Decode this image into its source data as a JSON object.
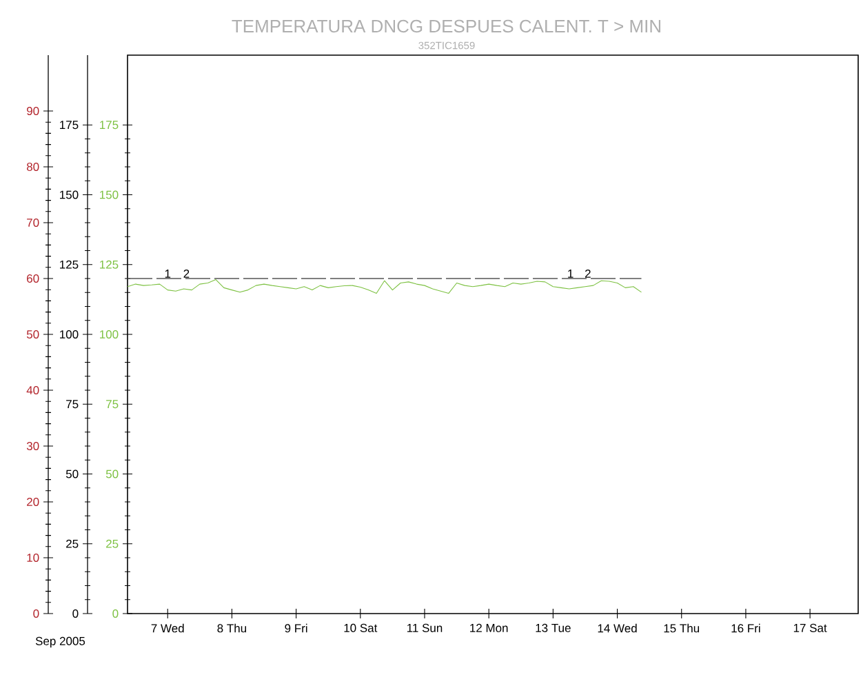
{
  "chart_data": {
    "type": "line",
    "title": "TEMPERATURA DNCG DESPUES CALENT.  T > MIN",
    "subtitle": "352TIC1659",
    "xlabel": "Sep 2005",
    "xlim": [
      "2005-09-06T09:00",
      "2005-09-17T18:00"
    ],
    "xticks": [
      {
        "value": "2005-09-07",
        "label": "7 Wed"
      },
      {
        "value": "2005-09-08",
        "label": "8 Thu"
      },
      {
        "value": "2005-09-09",
        "label": "9 Fri"
      },
      {
        "value": "2005-09-10",
        "label": "10 Sat"
      },
      {
        "value": "2005-09-11",
        "label": "11 Sun"
      },
      {
        "value": "2005-09-12",
        "label": "12 Mon"
      },
      {
        "value": "2005-09-13",
        "label": "13 Tue"
      },
      {
        "value": "2005-09-14",
        "label": "14 Wed"
      },
      {
        "value": "2005-09-15",
        "label": "15 Thu"
      },
      {
        "value": "2005-09-16",
        "label": "16 Fri"
      },
      {
        "value": "2005-09-17",
        "label": "17 Sat"
      }
    ],
    "ylim": [
      0,
      200
    ],
    "yticks": [
      0,
      25,
      50,
      75,
      100,
      125,
      150,
      175
    ],
    "y2lim": [
      0,
      200
    ],
    "y2ticks": [
      0,
      25,
      50,
      75,
      100,
      125,
      150,
      175
    ],
    "y3lim": [
      0,
      100
    ],
    "y3ticks": [
      0,
      10,
      20,
      30,
      40,
      50,
      60,
      70,
      80,
      90
    ],
    "grid": false,
    "x": [
      "2005-09-06T09:00",
      "2005-09-06T12:00",
      "2005-09-06T15:00",
      "2005-09-06T18:00",
      "2005-09-06T21:00",
      "2005-09-07T00:00",
      "2005-09-07T03:00",
      "2005-09-07T06:00",
      "2005-09-07T09:00",
      "2005-09-07T12:00",
      "2005-09-07T15:00",
      "2005-09-07T18:00",
      "2005-09-07T21:00",
      "2005-09-08T00:00",
      "2005-09-08T03:00",
      "2005-09-08T06:00",
      "2005-09-08T09:00",
      "2005-09-08T12:00",
      "2005-09-08T15:00",
      "2005-09-08T18:00",
      "2005-09-08T21:00",
      "2005-09-09T00:00",
      "2005-09-09T03:00",
      "2005-09-09T06:00",
      "2005-09-09T09:00",
      "2005-09-09T12:00",
      "2005-09-09T15:00",
      "2005-09-09T18:00",
      "2005-09-09T21:00",
      "2005-09-10T00:00",
      "2005-09-10T03:00",
      "2005-09-10T06:00",
      "2005-09-10T09:00",
      "2005-09-10T12:00",
      "2005-09-10T15:00",
      "2005-09-10T18:00",
      "2005-09-10T21:00",
      "2005-09-11T00:00",
      "2005-09-11T03:00",
      "2005-09-11T06:00",
      "2005-09-11T09:00",
      "2005-09-11T12:00",
      "2005-09-11T15:00",
      "2005-09-11T18:00",
      "2005-09-11T21:00",
      "2005-09-12T00:00",
      "2005-09-12T03:00",
      "2005-09-12T06:00",
      "2005-09-12T09:00",
      "2005-09-12T12:00",
      "2005-09-12T15:00",
      "2005-09-12T18:00",
      "2005-09-12T21:00",
      "2005-09-13T00:00",
      "2005-09-13T03:00",
      "2005-09-13T06:00",
      "2005-09-13T09:00",
      "2005-09-13T12:00",
      "2005-09-13T15:00",
      "2005-09-13T18:00",
      "2005-09-13T21:00",
      "2005-09-14T00:00",
      "2005-09-14T03:00",
      "2005-09-14T06:00",
      "2005-09-14T09:00"
    ],
    "series": [
      {
        "color": "#7dc142",
        "values": [
          117.1,
          118.0,
          117.5,
          117.7,
          118.0,
          115.9,
          115.5,
          116.3,
          115.9,
          118.0,
          118.4,
          119.6,
          116.7,
          115.9,
          115.1,
          115.9,
          117.5,
          118.0,
          117.5,
          117.1,
          116.7,
          116.3,
          117.1,
          115.9,
          117.5,
          116.7,
          117.1,
          117.4,
          117.5,
          116.9,
          115.9,
          114.7,
          119.2,
          115.9,
          118.4,
          118.8,
          118.0,
          117.5,
          116.3,
          115.5,
          114.7,
          118.4,
          117.5,
          117.1,
          117.5,
          118.0,
          117.5,
          117.1,
          118.4,
          118.0,
          118.4,
          119.0,
          118.8,
          117.1,
          116.7,
          116.3,
          116.7,
          117.1,
          117.5,
          119.2,
          119.0,
          118.4,
          116.7,
          117.1,
          115.1
        ]
      },
      {
        "color": "#555555",
        "line_style": "dashed",
        "x": [
          "2005-09-06T09:00",
          "2005-09-14T09:00"
        ],
        "values": [
          120,
          120
        ]
      }
    ],
    "annotations": [
      {
        "text": "1",
        "x": "2005-09-07T00:00",
        "y": 120
      },
      {
        "text": "2",
        "x": "2005-09-07T07:00",
        "y": 120
      },
      {
        "text": "1",
        "x": "2005-09-13T06:30",
        "y": 120
      },
      {
        "text": "2",
        "x": "2005-09-13T13:00",
        "y": 120
      }
    ]
  }
}
